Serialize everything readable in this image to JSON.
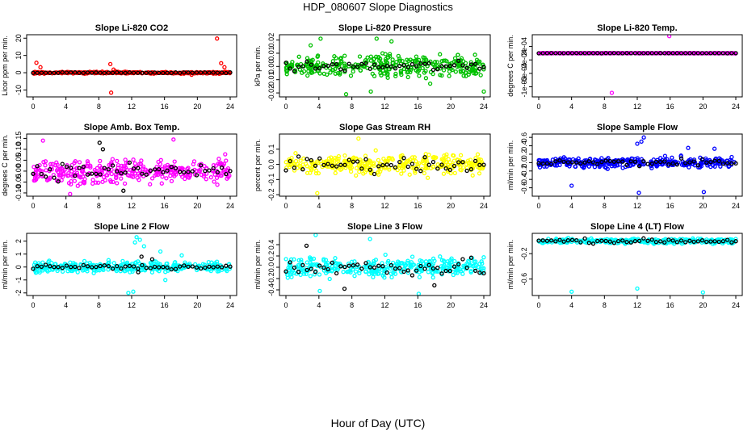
{
  "figure": {
    "title": "HDP_080607  Slope Diagnostics",
    "xlabel": "Hour of Day (UTC)"
  },
  "chart_data": [
    {
      "type": "scatter",
      "title": "Slope Li-820 CO2",
      "ylabel": "Licor ppm per min.",
      "xlim": [
        0,
        24
      ],
      "xticks": [
        0,
        4,
        8,
        12,
        16,
        20,
        24
      ],
      "ylim": [
        -14,
        22
      ],
      "yticks": [
        -10,
        0,
        10,
        20
      ],
      "ytick_labels": [
        "-10",
        "0",
        "10",
        "20"
      ],
      "series": [
        {
          "name": "all",
          "color": "#ff0000",
          "spread": 0.5,
          "outliers": [
            [
              0.2,
              0.5
            ],
            [
              0.4,
              5.8
            ],
            [
              0.9,
              3.2
            ],
            [
              9.4,
              5.0
            ],
            [
              9.5,
              -11.5
            ],
            [
              9.8,
              1.8
            ],
            [
              10.0,
              0.9
            ],
            [
              22.4,
              19.8
            ],
            [
              22.9,
              5.5
            ],
            [
              23.3,
              3.2
            ],
            [
              19.3,
              -1.2
            ]
          ]
        },
        {
          "name": "hourly",
          "color": "#000000",
          "spread": 0.2
        }
      ]
    },
    {
      "type": "scatter",
      "title": "Slope Li-820 Pressure",
      "ylabel": "kPa per min.",
      "xlim": [
        0,
        24
      ],
      "xticks": [
        0,
        4,
        8,
        12,
        16,
        20,
        24
      ],
      "ylim": [
        -0.023,
        0.024
      ],
      "yticks": [
        -0.02,
        -0.01,
        0.0,
        0.01,
        0.02
      ],
      "ytick_labels": [
        "-0.02",
        "-0.01",
        "0.00",
        "0.01",
        "0.02"
      ],
      "series": [
        {
          "name": "all",
          "color": "#00c000",
          "spread": 0.0085,
          "outliers": [
            [
              4.2,
              0.021
            ],
            [
              7.3,
              -0.021
            ],
            [
              10.3,
              -0.019
            ],
            [
              11.0,
              0.021
            ],
            [
              12.8,
              0.019
            ],
            [
              17.5,
              -0.013
            ],
            [
              24.0,
              -0.019
            ],
            [
              3.0,
              0.016
            ]
          ]
        },
        {
          "name": "hourly",
          "color": "#000000",
          "spread": 0.004
        }
      ]
    },
    {
      "type": "scatter",
      "title": "Slope Li-820 Temp.",
      "ylabel": "degrees C per min.",
      "xlim": [
        0,
        24
      ],
      "xticks": [
        0,
        4,
        8,
        12,
        16,
        20,
        24
      ],
      "ylim": [
        -0.0013,
        0.00055
      ],
      "yticks": [
        -0.001,
        -0.0006,
        -0.0002,
        0.0002
      ],
      "ytick_labels": [
        "-1e-03",
        "-6e-04",
        "-2e-04",
        "2e-04"
      ],
      "series": [
        {
          "name": "all",
          "color": "#ff00ff",
          "spread": 4e-06,
          "outliers": [
            [
              8.9,
              -0.00118
            ],
            [
              15.9,
              0.00051
            ]
          ]
        },
        {
          "name": "hourly",
          "color": "#000000",
          "spread": 2e-06
        }
      ]
    },
    {
      "type": "scatter",
      "title": "Slope Amb. Box Temp.",
      "ylabel": "degrees C per min.",
      "xlim": [
        0,
        24
      ],
      "xticks": [
        0,
        4,
        8,
        12,
        16,
        20,
        24
      ],
      "ylim": [
        -0.115,
        0.17
      ],
      "yticks": [
        -0.1,
        -0.05,
        0.0,
        0.05,
        0.1,
        0.15
      ],
      "ytick_labels": [
        "-0.10",
        "-0.05",
        "0.00",
        "0.05",
        "0.10",
        "0.15"
      ],
      "series": [
        {
          "name": "all",
          "color": "#ff00ff",
          "spread": 0.055,
          "outliers": [
            [
              4.5,
              -0.105
            ],
            [
              17.1,
              0.145
            ],
            [
              1.2,
              0.14
            ]
          ]
        },
        {
          "name": "hourly",
          "color": "#000000",
          "spread": 0.04,
          "outliers": [
            [
              8.1,
              0.13
            ],
            [
              11.0,
              -0.09
            ],
            [
              8.5,
              0.1
            ]
          ]
        }
      ]
    },
    {
      "type": "scatter",
      "title": "Slope Gas Stream RH",
      "ylabel": "percent per min.",
      "xlim": [
        0,
        24
      ],
      "xticks": [
        0,
        4,
        8,
        12,
        16,
        20,
        24
      ],
      "ylim": [
        -0.21,
        0.2
      ],
      "yticks": [
        -0.2,
        -0.1,
        0.0,
        0.1
      ],
      "ytick_labels": [
        "-0.2",
        "-0.1",
        "0.0",
        "0.1"
      ],
      "series": [
        {
          "name": "all",
          "color": "#ffff00",
          "spread": 0.07,
          "outliers": [
            [
              3.8,
              -0.19
            ],
            [
              8.8,
              0.17
            ]
          ]
        },
        {
          "name": "hourly",
          "color": "#000000",
          "spread": 0.05
        }
      ]
    },
    {
      "type": "scatter",
      "title": "Slope Sample Flow",
      "ylabel": "ml/min per min.",
      "xlim": [
        0,
        24
      ],
      "xticks": [
        0,
        4,
        8,
        12,
        16,
        20,
        24
      ],
      "ylim": [
        -0.8,
        0.68
      ],
      "yticks": [
        -0.6,
        -0.4,
        -0.2,
        0.0,
        0.2,
        0.4,
        0.6
      ],
      "ytick_labels": [
        "-0.6",
        "-0.4",
        "-0.2",
        "0.0",
        "0.2",
        "0.4",
        "0.6"
      ],
      "series": [
        {
          "name": "all",
          "color": "#0000ff",
          "spread": 0.12,
          "outliers": [
            [
              12.0,
              0.45
            ],
            [
              12.5,
              0.5
            ],
            [
              12.8,
              0.6
            ],
            [
              12.2,
              -0.72
            ],
            [
              4.0,
              -0.55
            ],
            [
              20.1,
              -0.7
            ],
            [
              18.2,
              0.35
            ],
            [
              21.4,
              0.33
            ]
          ]
        },
        {
          "name": "hourly",
          "color": "#000000",
          "spread": 0.1
        }
      ]
    },
    {
      "type": "scatter",
      "title": "Slope Line 2 Flow",
      "ylabel": "ml/min per min.",
      "xlim": [
        0,
        24
      ],
      "xticks": [
        0,
        4,
        8,
        12,
        16,
        20,
        24
      ],
      "ylim": [
        -2.2,
        2.6
      ],
      "yticks": [
        -2,
        -1,
        0,
        1,
        2
      ],
      "ytick_labels": [
        "-2",
        "-1",
        "0",
        "1",
        "2"
      ],
      "series": [
        {
          "name": "all",
          "color": "#00ffff",
          "spread": 0.4,
          "outliers": [
            [
              11.6,
              -2.0
            ],
            [
              12.2,
              -1.9
            ],
            [
              12.6,
              2.3
            ],
            [
              13.0,
              2.1
            ],
            [
              13.5,
              1.6
            ],
            [
              15.5,
              1.2
            ],
            [
              16.1,
              -1.0
            ],
            [
              18.1,
              0.9
            ],
            [
              12.4,
              1.9
            ]
          ]
        },
        {
          "name": "hourly",
          "color": "#000000",
          "spread": 0.2,
          "outliers": [
            [
              13.2,
              0.8
            ],
            [
              12.8,
              -0.4
            ],
            [
              14.5,
              0.6
            ]
          ]
        }
      ]
    },
    {
      "type": "scatter",
      "title": "Slope Line 3 Flow",
      "ylabel": "ml/min per min.",
      "xlim": [
        0,
        24
      ],
      "xticks": [
        0,
        4,
        8,
        12,
        16,
        20,
        24
      ],
      "ylim": [
        -0.5,
        0.6
      ],
      "yticks": [
        -0.4,
        -0.2,
        0.0,
        0.2,
        0.4
      ],
      "ytick_labels": [
        "-0.4",
        "-0.2",
        "0.0",
        "0.2",
        "0.4"
      ],
      "series": [
        {
          "name": "all",
          "color": "#00ffff",
          "spread": 0.17,
          "outliers": [
            [
              3.6,
              0.57
            ],
            [
              4.1,
              -0.42
            ],
            [
              16.1,
              -0.47
            ],
            [
              10.2,
              0.5
            ]
          ]
        },
        {
          "name": "hourly",
          "color": "#000000",
          "spread": 0.15,
          "outliers": [
            [
              7.1,
              -0.38
            ],
            [
              18.0,
              -0.32
            ],
            [
              2.5,
              0.38
            ]
          ]
        }
      ]
    },
    {
      "type": "scatter",
      "title": "Slope Line 4 (LT) Flow",
      "ylabel": "ml/min per min.",
      "xlim": [
        0,
        24
      ],
      "xticks": [
        0,
        4,
        8,
        12,
        16,
        20,
        24
      ],
      "ylim": [
        -0.86,
        0.12
      ],
      "yticks": [
        -0.6,
        -0.2
      ],
      "ytick_labels": [
        "-0.6",
        "-0.2"
      ],
      "series": [
        {
          "name": "all",
          "color": "#00ffff",
          "spread": 0.04,
          "outliers": [
            [
              4.0,
              -0.8
            ],
            [
              12.0,
              -0.75
            ],
            [
              20.0,
              -0.81
            ]
          ]
        },
        {
          "name": "hourly",
          "color": "#000000",
          "spread": 0.035
        }
      ]
    }
  ]
}
